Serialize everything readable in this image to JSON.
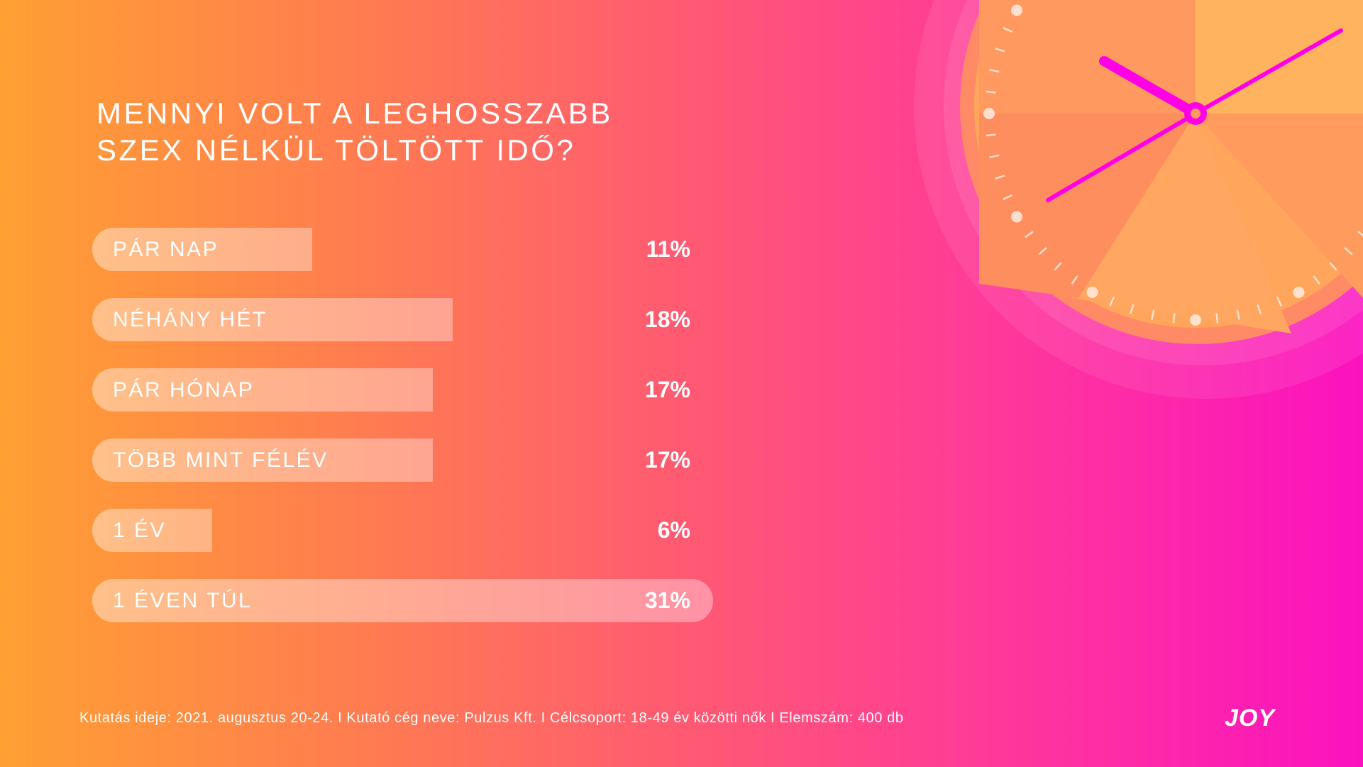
{
  "title_lines": [
    "MENNYI VOLT A LEGHOSSZABB",
    "SZEX NÉLKÜL TÖLTÖTT IDŐ?"
  ],
  "chart_data": {
    "type": "bar",
    "orientation": "horizontal",
    "title": "MENNYI VOLT A LEGHOSSZABB SZEX NÉLKÜL TÖLTÖTT IDŐ?",
    "categories": [
      "PÁR NAP",
      "NÉHÁNY HÉT",
      "PÁR HÓNAP",
      "TÖBB MINT FÉLÉV",
      "1 ÉV",
      "1 ÉVEN TÚL"
    ],
    "values": [
      11,
      18,
      17,
      17,
      6,
      31
    ],
    "value_labels": [
      "11%",
      "18%",
      "17%",
      "17%",
      "6%",
      "31%"
    ],
    "unit": "%",
    "xlim": [
      0,
      31
    ]
  },
  "footer": "Kutatás ideje: 2021. augusztus 20-24. I Kutató cég neve: Pulzus Kft. I Célcsoport: 18-49 év közötti nők I Elemszám: 400 db",
  "logo": "JOY",
  "colors": {
    "gradient_start": "#ffa033",
    "gradient_end": "#fb12bf",
    "clock_hands": "#ff00e6"
  },
  "icons": {
    "decoration": "clock-icon"
  }
}
